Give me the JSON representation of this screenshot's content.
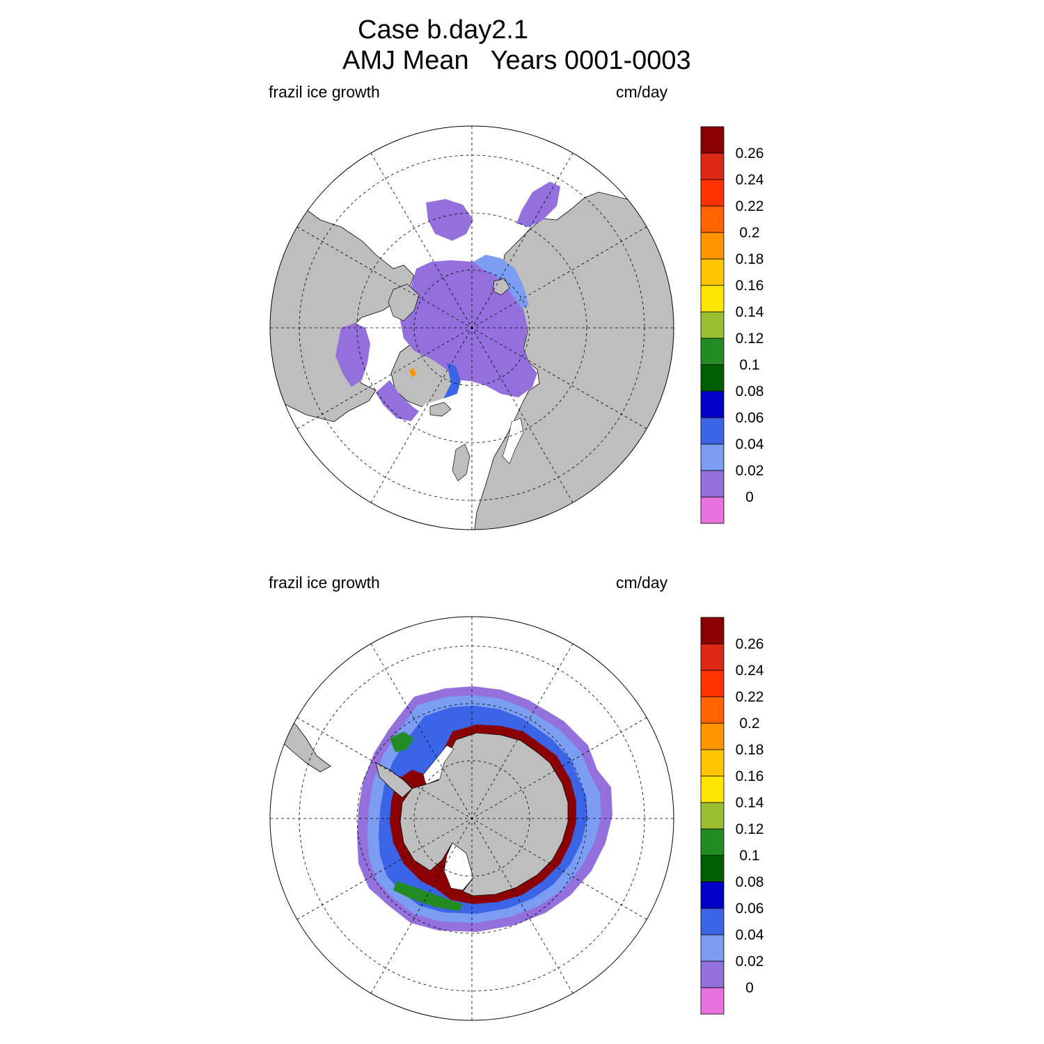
{
  "figure": {
    "title_line1": "Case b.day2.1",
    "title_line2": "AMJ Mean   Years 0001-0003"
  },
  "panels": [
    {
      "id": "north",
      "left_label": "frazil ice growth",
      "right_label": "cm/day",
      "hemisphere": "north"
    },
    {
      "id": "south",
      "left_label": "frazil ice growth",
      "right_label": "cm/day",
      "hemisphere": "south"
    }
  ],
  "colorbar": {
    "levels": [
      "0",
      "0.02",
      "0.04",
      "0.06",
      "0.08",
      "0.1",
      "0.12",
      "0.14",
      "0.16",
      "0.18",
      "0.2",
      "0.22",
      "0.24",
      "0.26"
    ],
    "colors": [
      "#e673e0",
      "#9370db",
      "#7b9df2",
      "#3c64e6",
      "#0000c8",
      "#005f00",
      "#228b22",
      "#9abe32",
      "#ffe600",
      "#ffc400",
      "#ff9600",
      "#ff6400",
      "#ff3200",
      "#dc2814",
      "#8b0000"
    ]
  },
  "colors": {
    "land": "#bebebe",
    "ocean_no_ice": "#ffffff",
    "frame": "#000000"
  }
}
